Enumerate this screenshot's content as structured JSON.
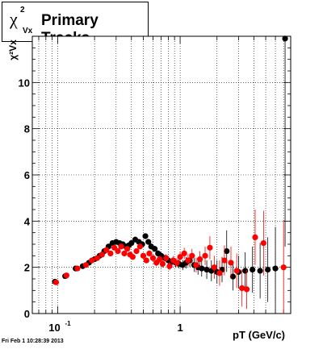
{
  "title": {
    "symbol": "χ",
    "superscript": "2",
    "subscript": "Vx",
    "text": "Primary Tracks"
  },
  "footer": "Fri Feb  1 10:28:39 2013",
  "colors": {
    "series_black": "#000000",
    "series_red": "#ff0000",
    "frame": "#000000"
  },
  "chart_data": {
    "type": "scatter",
    "title": "Primary Tracks",
    "xlabel": "pT (GeV/c)",
    "ylabel": "χ²Vx",
    "xscale": "log",
    "xlim": [
      0.062,
      8.0
    ],
    "ylim": [
      0,
      12
    ],
    "grid": true,
    "x_tick_labels": [
      {
        "value": 0.1,
        "base": "10",
        "exp": "-1"
      },
      {
        "value": 1,
        "base": "1",
        "exp": ""
      }
    ],
    "y_ticks": [
      0,
      2,
      4,
      6,
      8,
      10
    ],
    "y_tick_labels": [
      "0",
      "2",
      "4",
      "6",
      "8",
      "10"
    ],
    "series": [
      {
        "color": "black",
        "points": [
          {
            "x": 0.095,
            "y": 1.38,
            "e": 0.05
          },
          {
            "x": 0.115,
            "y": 1.62,
            "e": 0.05
          },
          {
            "x": 0.14,
            "y": 1.95,
            "e": 0.05
          },
          {
            "x": 0.16,
            "y": 2.05,
            "e": 0.05
          },
          {
            "x": 0.18,
            "y": 2.2,
            "e": 0.05
          },
          {
            "x": 0.2,
            "y": 2.35,
            "e": 0.05
          },
          {
            "x": 0.22,
            "y": 2.5,
            "e": 0.06
          },
          {
            "x": 0.24,
            "y": 2.7,
            "e": 0.06
          },
          {
            "x": 0.26,
            "y": 2.9,
            "e": 0.06
          },
          {
            "x": 0.28,
            "y": 3.05,
            "e": 0.06
          },
          {
            "x": 0.3,
            "y": 3.1,
            "e": 0.07
          },
          {
            "x": 0.32,
            "y": 3.05,
            "e": 0.07
          },
          {
            "x": 0.34,
            "y": 3.0,
            "e": 0.07
          },
          {
            "x": 0.36,
            "y": 2.9,
            "e": 0.08
          },
          {
            "x": 0.38,
            "y": 2.95,
            "e": 0.08
          },
          {
            "x": 0.4,
            "y": 3.05,
            "e": 0.08
          },
          {
            "x": 0.43,
            "y": 3.2,
            "e": 0.09
          },
          {
            "x": 0.46,
            "y": 3.1,
            "e": 0.1
          },
          {
            "x": 0.49,
            "y": 3.0,
            "e": 0.1
          },
          {
            "x": 0.52,
            "y": 3.35,
            "e": 0.12
          },
          {
            "x": 0.55,
            "y": 3.1,
            "e": 0.12
          },
          {
            "x": 0.58,
            "y": 2.9,
            "e": 0.13
          },
          {
            "x": 0.62,
            "y": 2.8,
            "e": 0.13
          },
          {
            "x": 0.66,
            "y": 2.6,
            "e": 0.14
          },
          {
            "x": 0.7,
            "y": 2.5,
            "e": 0.15
          },
          {
            "x": 0.75,
            "y": 2.4,
            "e": 0.15
          },
          {
            "x": 0.8,
            "y": 2.3,
            "e": 0.16
          },
          {
            "x": 0.86,
            "y": 2.25,
            "e": 0.17
          },
          {
            "x": 0.92,
            "y": 2.2,
            "e": 0.18
          },
          {
            "x": 0.98,
            "y": 2.15,
            "e": 0.2
          },
          {
            "x": 1.05,
            "y": 2.1,
            "e": 0.22
          },
          {
            "x": 1.12,
            "y": 2.2,
            "e": 0.25
          },
          {
            "x": 1.2,
            "y": 2.3,
            "e": 0.28
          },
          {
            "x": 1.3,
            "y": 2.1,
            "e": 0.3
          },
          {
            "x": 1.4,
            "y": 2.0,
            "e": 0.32
          },
          {
            "x": 1.5,
            "y": 1.95,
            "e": 0.35
          },
          {
            "x": 1.65,
            "y": 1.9,
            "e": 0.4
          },
          {
            "x": 1.8,
            "y": 1.85,
            "e": 0.45
          },
          {
            "x": 2.0,
            "y": 1.8,
            "e": 0.5
          },
          {
            "x": 2.2,
            "y": 1.9,
            "e": 0.55
          },
          {
            "x": 2.4,
            "y": 2.7,
            "e": 0.9
          },
          {
            "x": 2.7,
            "y": 1.6,
            "e": 0.6
          },
          {
            "x": 3.0,
            "y": 1.8,
            "e": 0.7
          },
          {
            "x": 3.4,
            "y": 1.85,
            "e": 0.8
          },
          {
            "x": 3.9,
            "y": 1.9,
            "e": 1.0
          },
          {
            "x": 4.5,
            "y": 1.85,
            "e": 1.2
          },
          {
            "x": 5.2,
            "y": 1.9,
            "e": 1.4
          },
          {
            "x": 6.0,
            "y": 1.95,
            "e": 1.8
          },
          {
            "x": 7.2,
            "y": 11.9,
            "e": 9.0
          }
        ]
      },
      {
        "color": "red",
        "points": [
          {
            "x": 0.097,
            "y": 1.35,
            "e": 0.05
          },
          {
            "x": 0.118,
            "y": 1.65,
            "e": 0.05
          },
          {
            "x": 0.145,
            "y": 1.95,
            "e": 0.05
          },
          {
            "x": 0.17,
            "y": 2.1,
            "e": 0.05
          },
          {
            "x": 0.19,
            "y": 2.3,
            "e": 0.05
          },
          {
            "x": 0.21,
            "y": 2.4,
            "e": 0.06
          },
          {
            "x": 0.23,
            "y": 2.55,
            "e": 0.06
          },
          {
            "x": 0.25,
            "y": 2.75,
            "e": 0.06
          },
          {
            "x": 0.27,
            "y": 2.6,
            "e": 0.07
          },
          {
            "x": 0.29,
            "y": 2.85,
            "e": 0.07
          },
          {
            "x": 0.31,
            "y": 2.7,
            "e": 0.07
          },
          {
            "x": 0.33,
            "y": 2.9,
            "e": 0.08
          },
          {
            "x": 0.35,
            "y": 2.6,
            "e": 0.08
          },
          {
            "x": 0.37,
            "y": 2.8,
            "e": 0.09
          },
          {
            "x": 0.39,
            "y": 2.55,
            "e": 0.09
          },
          {
            "x": 0.41,
            "y": 2.45,
            "e": 0.1
          },
          {
            "x": 0.44,
            "y": 2.7,
            "e": 0.1
          },
          {
            "x": 0.47,
            "y": 2.9,
            "e": 0.11
          },
          {
            "x": 0.5,
            "y": 2.5,
            "e": 0.12
          },
          {
            "x": 0.53,
            "y": 2.3,
            "e": 0.13
          },
          {
            "x": 0.56,
            "y": 2.6,
            "e": 0.13
          },
          {
            "x": 0.6,
            "y": 2.4,
            "e": 0.14
          },
          {
            "x": 0.64,
            "y": 2.2,
            "e": 0.15
          },
          {
            "x": 0.68,
            "y": 2.35,
            "e": 0.15
          },
          {
            "x": 0.72,
            "y": 2.15,
            "e": 0.16
          },
          {
            "x": 0.77,
            "y": 2.4,
            "e": 0.17
          },
          {
            "x": 0.82,
            "y": 2.05,
            "e": 0.18
          },
          {
            "x": 0.88,
            "y": 2.3,
            "e": 0.19
          },
          {
            "x": 0.94,
            "y": 2.2,
            "e": 0.2
          },
          {
            "x": 1.0,
            "y": 2.45,
            "e": 0.22
          },
          {
            "x": 1.08,
            "y": 2.6,
            "e": 0.25
          },
          {
            "x": 1.16,
            "y": 2.3,
            "e": 0.27
          },
          {
            "x": 1.25,
            "y": 2.5,
            "e": 0.3
          },
          {
            "x": 1.35,
            "y": 2.1,
            "e": 0.32
          },
          {
            "x": 1.45,
            "y": 2.35,
            "e": 0.35
          },
          {
            "x": 1.6,
            "y": 2.5,
            "e": 0.4
          },
          {
            "x": 1.75,
            "y": 2.85,
            "e": 0.5
          },
          {
            "x": 1.9,
            "y": 2.0,
            "e": 0.5
          },
          {
            "x": 2.1,
            "y": 1.75,
            "e": 0.55
          },
          {
            "x": 2.3,
            "y": 2.3,
            "e": 0.65
          },
          {
            "x": 2.6,
            "y": 2.2,
            "e": 0.7
          },
          {
            "x": 2.9,
            "y": 1.85,
            "e": 0.75
          },
          {
            "x": 3.2,
            "y": 1.1,
            "e": 0.8
          },
          {
            "x": 3.5,
            "y": 1.05,
            "e": 0.85
          },
          {
            "x": 4.1,
            "y": 3.3,
            "e": 1.2
          },
          {
            "x": 4.8,
            "y": 3.05,
            "e": 1.4
          },
          {
            "x": 7.0,
            "y": 2.0,
            "e": 2.0
          }
        ]
      }
    ]
  }
}
